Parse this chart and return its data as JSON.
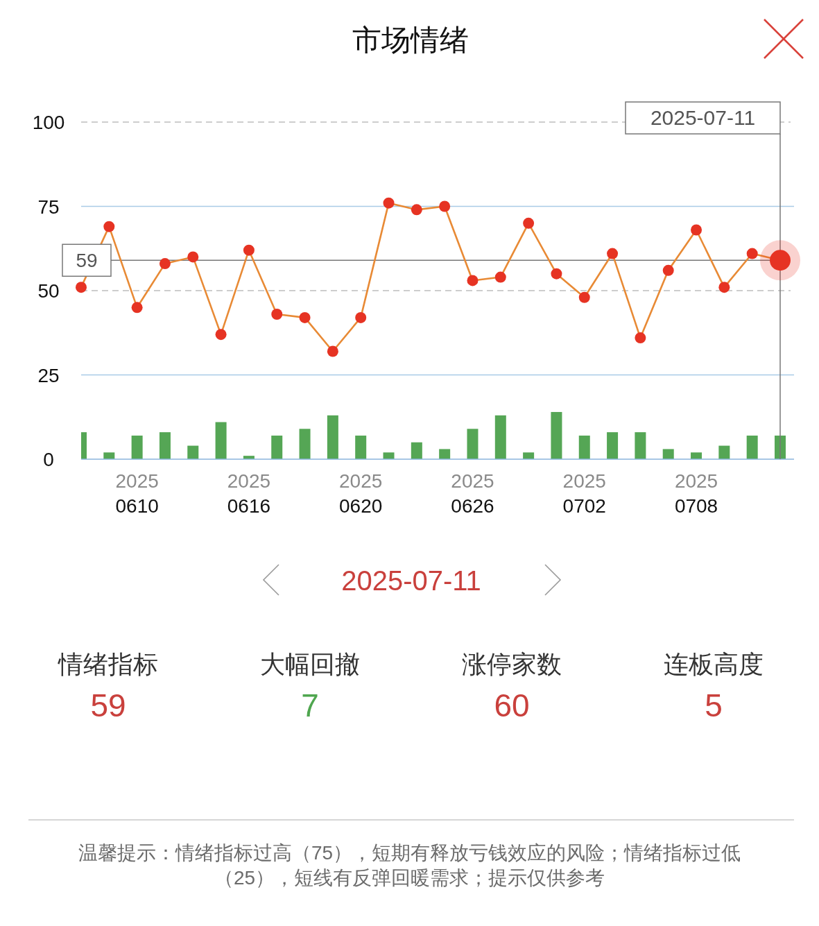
{
  "chart_data": [
    {
      "type": "line",
      "title": "市场情绪",
      "categories": [
        null,
        null,
        "2025\n0610",
        null,
        null,
        null,
        "2025\n0616",
        null,
        null,
        null,
        "2025\n0620",
        null,
        null,
        null,
        "2025\n0626",
        null,
        null,
        null,
        "2025\n0702",
        null,
        null,
        null,
        "2025\n0708",
        null,
        null,
        null
      ],
      "series": [
        {
          "type": "bar",
          "color": "#55a655",
          "values": [
            8,
            2,
            7,
            8,
            4,
            11,
            1,
            7,
            9,
            13,
            7,
            2,
            5,
            3,
            9,
            13,
            2,
            14,
            7,
            8,
            8,
            3,
            2,
            4,
            7,
            7
          ]
        },
        {
          "type": "line",
          "color": "#e88a35",
          "colors": [
            "#e63323",
            "#e63323",
            "#e63323",
            "#e63323",
            "#e63323",
            "#e63323",
            "#e63323",
            "#e63323",
            "#e63323",
            "#e63323",
            "#e63323",
            "#e63323",
            "#e63323",
            "#e63323",
            "#e63323",
            "#e63323",
            "#e63323",
            "#e63323",
            "#e63323",
            "#e63323",
            "#e63323",
            "#e63323",
            "#e63323",
            "#e63323",
            "#e63323",
            "#e63323"
          ],
          "values": [
            51,
            69,
            45,
            58,
            60,
            37,
            62,
            43,
            42,
            32,
            42,
            76,
            74,
            75,
            53,
            54,
            70,
            55,
            48,
            61,
            36,
            56,
            68,
            51,
            61,
            59
          ]
        }
      ],
      "marker": "circle",
      "line_style": "solid",
      "ylim": [
        0,
        100
      ],
      "yticks": [
        0,
        25,
        50,
        75,
        100
      ],
      "ref_lines": [
        {
          "axis": "y",
          "value": 100,
          "color": "#bdbdbd",
          "line_style": "dashed"
        },
        {
          "axis": "y",
          "value": 75,
          "color": "#a9cbe6"
        },
        {
          "axis": "y",
          "value": 50,
          "color": "#bdbdbd",
          "line_style": "dashed"
        },
        {
          "axis": "y",
          "value": 25,
          "color": "#a9cbe6"
        },
        {
          "axis": "y",
          "value": 59,
          "label": "59",
          "color": "#777777"
        }
      ],
      "annotations": [
        "2025-07-11"
      ]
    },
    {
      "type": "other",
      "title": "2025-07-11",
      "categories": [
        "情绪指标",
        "大幅回撤",
        "涨停家数",
        "连板高度"
      ],
      "values": [
        59,
        7,
        60,
        5
      ],
      "colors": [
        "#c9403c",
        "#4fa64f",
        "#c9403c",
        "#c9403c"
      ],
      "data_labels": true,
      "annotations": [
        "温馨提示：情绪指标过高（75），短期有释放亏钱效应的风险；情绪指标过低（25），短线有反弹回暖需求；提示仅供参考"
      ]
    }
  ]
}
